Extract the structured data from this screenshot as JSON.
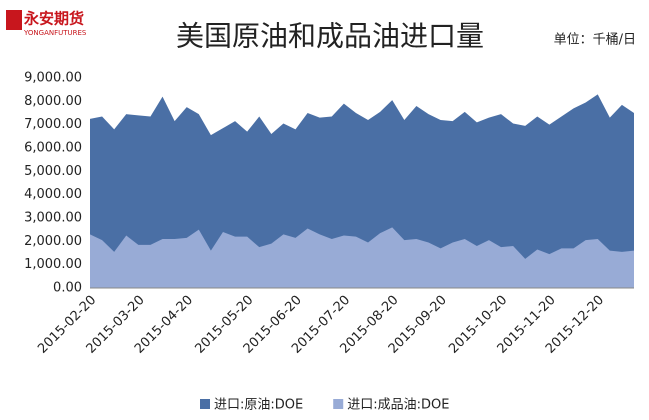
{
  "logo": {
    "name": "永安期货",
    "sub": "YONGANFUTURES"
  },
  "chart_data": {
    "type": "area",
    "title": "美国原油和成品油进口量",
    "unit_label": "单位：千桶/日",
    "categories": [
      "2015-02-20",
      null,
      null,
      null,
      "2015-03-20",
      null,
      null,
      null,
      "2015-04-20",
      null,
      null,
      null,
      null,
      "2015-05-20",
      null,
      null,
      null,
      "2015-06-20",
      null,
      null,
      null,
      "2015-07-20",
      null,
      null,
      null,
      "2015-08-20",
      null,
      null,
      null,
      "2015-09-20",
      null,
      null,
      null,
      null,
      "2015-10-20",
      null,
      null,
      null,
      "2015-11-20",
      null,
      null,
      null,
      "2015-12-20",
      null,
      null,
      null
    ],
    "series": [
      {
        "name": "进口:原油:DOE",
        "color": "#4a6fa5",
        "values": [
          7250,
          7350,
          6800,
          7450,
          7400,
          7350,
          8200,
          7150,
          7750,
          7450,
          6550,
          6850,
          7150,
          6700,
          7350,
          6600,
          7050,
          6800,
          7500,
          7300,
          7350,
          7900,
          7500,
          7200,
          7550,
          8050,
          7200,
          7800,
          7450,
          7200,
          7150,
          7550,
          7100,
          7300,
          7450,
          7050,
          6950,
          7350,
          7000,
          7350,
          7700,
          7950,
          8300,
          7300,
          7850,
          7500
        ]
      },
      {
        "name": "进口:成品油:DOE",
        "color": "#98abd6",
        "values": [
          2300,
          2050,
          1550,
          2250,
          1850,
          1850,
          2100,
          2100,
          2150,
          2500,
          1600,
          2400,
          2200,
          2200,
          1750,
          1900,
          2300,
          2150,
          2550,
          2300,
          2100,
          2250,
          2200,
          1950,
          2350,
          2600,
          2050,
          2100,
          1950,
          1700,
          1950,
          2100,
          1800,
          2050,
          1750,
          1800,
          1250,
          1650,
          1450,
          1700,
          1700,
          2050,
          2100,
          1600,
          1550,
          1600
        ]
      }
    ],
    "ylim": [
      0,
      9000
    ],
    "yticks": [
      {
        "value": 0,
        "label": "0.00"
      },
      {
        "value": 1000,
        "label": "1,000.00"
      },
      {
        "value": 2000,
        "label": "2,000.00"
      },
      {
        "value": 3000,
        "label": "3,000.00"
      },
      {
        "value": 4000,
        "label": "4,000.00"
      },
      {
        "value": 5000,
        "label": "5,000.00"
      },
      {
        "value": 6000,
        "label": "6,000.00"
      },
      {
        "value": 7000,
        "label": "7,000.00"
      },
      {
        "value": 8000,
        "label": "8,000.00"
      },
      {
        "value": 9000,
        "label": "9,000.00"
      }
    ],
    "grid": false,
    "legend": "bottom"
  }
}
